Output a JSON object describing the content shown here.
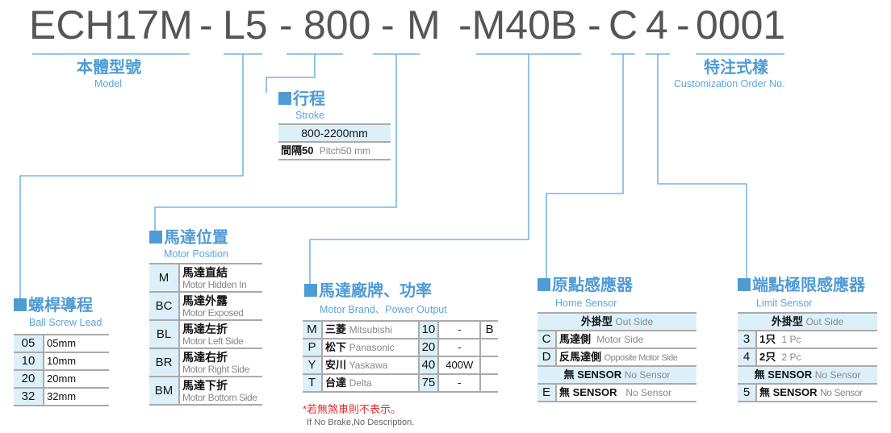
{
  "code_segments": [
    "ECH17M",
    "-",
    "L5",
    "-",
    "800",
    "-",
    "M",
    "-M40B",
    "-",
    "C",
    "4",
    "-",
    "0001"
  ],
  "model": {
    "zh": "本體型號",
    "en": "Model"
  },
  "custom": {
    "zh": "特注式樣",
    "en": "Customization Order No."
  },
  "stroke": {
    "zh": "行程",
    "en": "Stroke",
    "range": "800-2200mm",
    "pitch_zh": "間隔50",
    "pitch_en": "Pitch50 mm"
  },
  "lead": {
    "zh": "螺桿導程",
    "en": "Ball Screw Lead",
    "rows": [
      {
        "code": "05",
        "value": "05mm"
      },
      {
        "code": "10",
        "value": "10mm"
      },
      {
        "code": "20",
        "value": "20mm"
      },
      {
        "code": "32",
        "value": "32mm"
      }
    ]
  },
  "position": {
    "zh": "馬達位置",
    "en": "Motor Position",
    "rows": [
      {
        "code": "M",
        "zh": "馬達直結",
        "en": "Motor Hidden In"
      },
      {
        "code": "BC",
        "zh": "馬達外露",
        "en": "Motor Exposed"
      },
      {
        "code": "BL",
        "zh": "馬達左折",
        "en": "Motor Left Side"
      },
      {
        "code": "BR",
        "zh": "馬達右折",
        "en": "Motor Right Side"
      },
      {
        "code": "BM",
        "zh": "馬達下折",
        "en": "Motor Bottom Side"
      }
    ]
  },
  "brand": {
    "zh": "馬達廠牌、功率",
    "en": "Motor Brand、Power Output",
    "rows": [
      {
        "code": "M",
        "zh": "三菱",
        "en": "Mitsubishi",
        "power": "10",
        "watt": "-",
        "brake": "B"
      },
      {
        "code": "P",
        "zh": "松下",
        "en": "Panasonic",
        "power": "20",
        "watt": "-",
        "brake": ""
      },
      {
        "code": "Y",
        "zh": "安川",
        "en": "Yaskawa",
        "power": "40",
        "watt": "400W",
        "brake": ""
      },
      {
        "code": "T",
        "zh": "台達",
        "en": "Delta",
        "power": "75",
        "watt": "-",
        "brake": ""
      }
    ],
    "note_zh": "*若無煞車則不表示。",
    "note_en": "If No Brake,No Description."
  },
  "home": {
    "zh": "原點感應器",
    "en": "Home Sensor",
    "header_zh": "外掛型",
    "header_en": "Out Side",
    "rows": [
      {
        "code": "C",
        "zh": "馬達側",
        "en": "Motor Side"
      },
      {
        "code": "D",
        "zh": "反馬達側",
        "en": "Opposite Motor Side"
      }
    ],
    "none_zh": "無 SENSOR",
    "none_en": "No Sensor",
    "last": {
      "code": "E",
      "zh": "無 SENSOR",
      "en": "No Sensor"
    }
  },
  "limit": {
    "zh": "端點極限感應器",
    "en": "Limit Sensor",
    "header_zh": "外掛型",
    "header_en": "Out Side",
    "rows": [
      {
        "code": "3",
        "zh": "1只",
        "en": "1 Pc"
      },
      {
        "code": "4",
        "zh": "2只",
        "en": "2 Pc"
      }
    ],
    "none_zh": "無 SENSOR",
    "none_en": "No Sensor",
    "last": {
      "code": "5",
      "zh": "無 SENSOR",
      "en": "No Sensor"
    }
  },
  "colors": {
    "accent": "#4f9bd4",
    "cell": "#ddf0fa",
    "code_text": "#555555",
    "note": "#e03030"
  }
}
